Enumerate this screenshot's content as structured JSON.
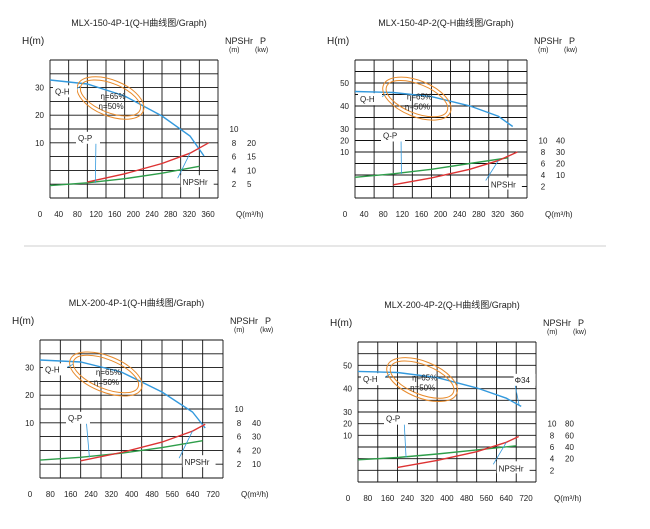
{
  "charts": [
    {
      "title": "MLX-150-4P-1(Q-H曲线图/Graph)",
      "h_unit": "H(m)",
      "right_header": {
        "npshr": "NPSHr",
        "npshr_unit": "(m)",
        "p": "P",
        "p_unit": "(kw)"
      },
      "q_unit": "Q(m³/h)",
      "h_ticks": [
        "30",
        "20",
        "10"
      ],
      "npshr_ticks": [
        "10",
        "8",
        "6",
        "4",
        "2"
      ],
      "p_ticks": [
        "20",
        "15",
        "10",
        "5"
      ],
      "q_ticks": [
        "0",
        "40",
        "80",
        "120",
        "160",
        "200",
        "240",
        "280",
        "320",
        "360"
      ],
      "labels": {
        "qh": "Q-H",
        "qp": "Q-P",
        "npshr": "NPSHr",
        "eff1": "η=65%",
        "eff2": "η=50%",
        "extra": ""
      }
    },
    {
      "title": "MLX-150-4P-2(Q-H曲线图/Graph)",
      "h_unit": "H(m)",
      "right_header": {
        "npshr": "NPSHr",
        "npshr_unit": "(m)",
        "p": "P",
        "p_unit": "(kw)"
      },
      "q_unit": "Q(m³/h)",
      "h_ticks": [
        "50",
        "40",
        "30",
        "20",
        "10"
      ],
      "npshr_ticks": [
        "10",
        "8",
        "6",
        "4",
        "2"
      ],
      "p_ticks": [
        "40",
        "30",
        "20",
        "10"
      ],
      "q_ticks": [
        "0",
        "40",
        "80",
        "120",
        "160",
        "200",
        "240",
        "280",
        "320",
        "360"
      ],
      "labels": {
        "qh": "Q-H",
        "qp": "Q-P",
        "npshr": "NPSHr",
        "eff1": "η=65%",
        "eff2": "η=50%",
        "extra": ""
      }
    },
    {
      "title": "MLX-200-4P-1(Q-H曲线图/Graph)",
      "h_unit": "H(m)",
      "right_header": {
        "npshr": "NPSHr",
        "npshr_unit": "(m)",
        "p": "P",
        "p_unit": "(kw)"
      },
      "q_unit": "Q(m³/h)",
      "h_ticks": [
        "30",
        "20",
        "10"
      ],
      "npshr_ticks": [
        "10",
        "8",
        "6",
        "4",
        "2"
      ],
      "p_ticks": [
        "40",
        "30",
        "20",
        "10"
      ],
      "q_ticks": [
        "0",
        "80",
        "160",
        "240",
        "320",
        "400",
        "480",
        "560",
        "640",
        "720"
      ],
      "labels": {
        "qh": "Q-H",
        "qp": "Q-P",
        "npshr": "NPSHr",
        "eff1": "η=65%",
        "eff2": "η=50%",
        "extra": ""
      }
    },
    {
      "title": "MLX-200-4P-2(Q-H曲线图/Graph)",
      "h_unit": "H(m)",
      "right_header": {
        "npshr": "NPSHr",
        "npshr_unit": "(m)",
        "p": "P",
        "p_unit": "(kw)"
      },
      "q_unit": "Q(m³/h)",
      "h_ticks": [
        "50",
        "40",
        "30",
        "20",
        "10"
      ],
      "npshr_ticks": [
        "10",
        "8",
        "6",
        "4",
        "2"
      ],
      "p_ticks": [
        "80",
        "60",
        "40",
        "20"
      ],
      "q_ticks": [
        "0",
        "80",
        "160",
        "240",
        "320",
        "400",
        "480",
        "560",
        "640",
        "720"
      ],
      "labels": {
        "qh": "Q-H",
        "qp": "Q-P",
        "npshr": "NPSHr",
        "eff1": "η=65%",
        "eff2": "η=50%",
        "extra": "Φ34"
      }
    }
  ],
  "chart_data": [
    {
      "type": "line",
      "title": "MLX-150-4P-1(Q-H曲线图/Graph)",
      "xlabel": "Q(m³/h)",
      "ylabel": "H(m)",
      "xlim": [
        0,
        360
      ],
      "series": [
        {
          "name": "Q-H",
          "unit": "m",
          "x": [
            0,
            80,
            160,
            240,
            300,
            330
          ],
          "y": [
            30,
            29,
            26,
            21,
            16,
            11
          ]
        },
        {
          "name": "Q-P",
          "unit": "kw",
          "x": [
            0,
            80,
            160,
            240,
            320
          ],
          "y": [
            4.5,
            5.5,
            7,
            9,
            11.5
          ]
        },
        {
          "name": "NPSHr",
          "unit": "m",
          "x": [
            80,
            160,
            240,
            300,
            340
          ],
          "y": [
            2.3,
            3.5,
            5,
            6.5,
            8
          ]
        }
      ],
      "annotations": [
        "η=65%",
        "η=50%"
      ]
    },
    {
      "type": "line",
      "title": "MLX-150-4P-2(Q-H曲线图/Graph)",
      "xlabel": "Q(m³/h)",
      "ylabel": "H(m)",
      "xlim": [
        0,
        360
      ],
      "series": [
        {
          "name": "Q-H",
          "unit": "m",
          "x": [
            0,
            80,
            160,
            240,
            300,
            330
          ],
          "y": [
            42,
            41.5,
            39.5,
            35,
            30,
            25
          ]
        },
        {
          "name": "Q-P",
          "unit": "kw",
          "x": [
            0,
            80,
            160,
            240,
            320
          ],
          "y": [
            8,
            11,
            15,
            20,
            25
          ]
        },
        {
          "name": "NPSHr",
          "unit": "m",
          "x": [
            80,
            160,
            240,
            300,
            340
          ],
          "y": [
            2.3,
            3.5,
            5,
            6.5,
            8
          ]
        }
      ],
      "annotations": [
        "η=65%",
        "η=50%"
      ]
    },
    {
      "type": "line",
      "title": "MLX-200-4P-1(Q-H曲线图/Graph)",
      "xlabel": "Q(m³/h)",
      "ylabel": "H(m)",
      "xlim": [
        0,
        720
      ],
      "series": [
        {
          "name": "Q-H",
          "unit": "m",
          "x": [
            0,
            160,
            320,
            480,
            600,
            650
          ],
          "y": [
            30,
            29.5,
            27,
            22,
            17,
            13
          ]
        },
        {
          "name": "Q-P",
          "unit": "kw",
          "x": [
            0,
            160,
            320,
            480,
            640
          ],
          "y": [
            13,
            15,
            18,
            22,
            27
          ]
        },
        {
          "name": "NPSHr",
          "unit": "m",
          "x": [
            160,
            320,
            480,
            600,
            650
          ],
          "y": [
            2.5,
            3.7,
            5.2,
            6.8,
            7.8
          ]
        }
      ],
      "annotations": [
        "η=65%",
        "η=50%"
      ]
    },
    {
      "type": "line",
      "title": "MLX-200-4P-2(Q-H曲线图/Graph)",
      "xlabel": "Q(m³/h)",
      "ylabel": "H(m)",
      "xlim": [
        0,
        720
      ],
      "series": [
        {
          "name": "Q-H",
          "unit": "m",
          "x": [
            0,
            160,
            320,
            480,
            600,
            660
          ],
          "y": [
            43,
            42.5,
            40,
            35,
            30,
            26
          ]
        },
        {
          "name": "Q-P",
          "unit": "kw",
          "x": [
            0,
            160,
            320,
            480,
            640
          ],
          "y": [
            18,
            22,
            28,
            35,
            42
          ]
        },
        {
          "name": "NPSHr",
          "unit": "m",
          "x": [
            160,
            320,
            480,
            600,
            650
          ],
          "y": [
            2.5,
            3.7,
            5.2,
            6.8,
            7.8
          ]
        }
      ],
      "annotations": [
        "η=65%",
        "η=50%",
        "Φ34"
      ]
    }
  ],
  "colors": {
    "qh": "#3399dd",
    "qp": "#2e9e4a",
    "npshr": "#dd3333",
    "eff": "#e88a2a",
    "grid": "#111111",
    "divider": "#cfcfcf"
  }
}
